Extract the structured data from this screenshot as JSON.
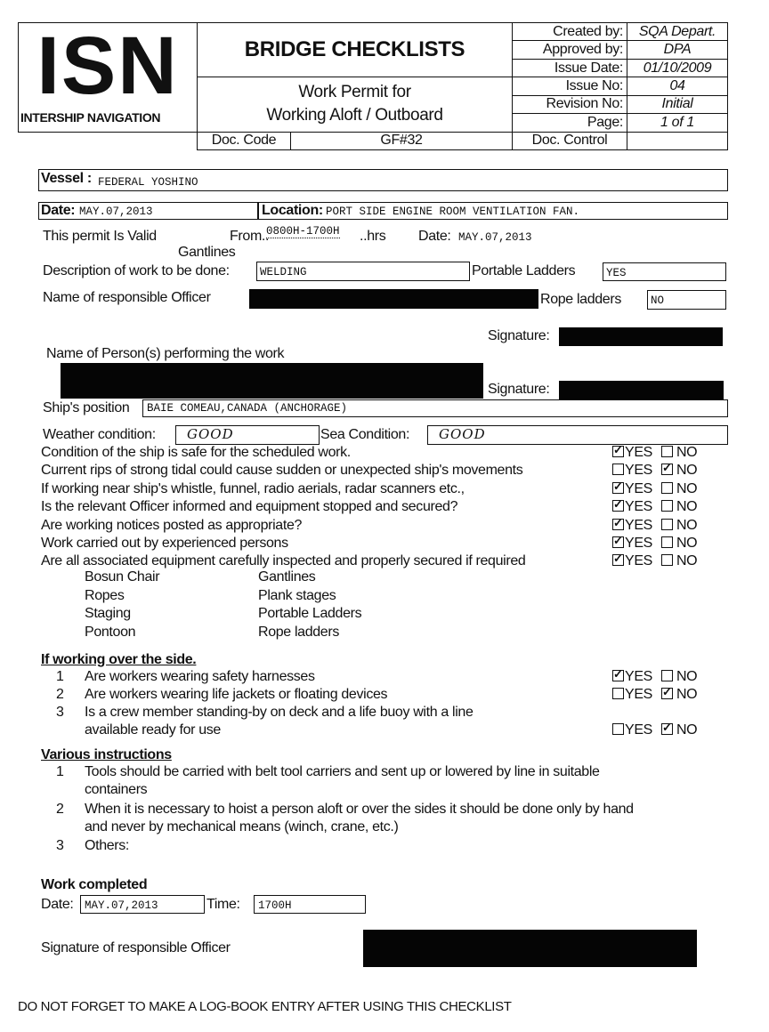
{
  "header": {
    "logo": "ISN",
    "company": "INTERSHIP NAVIGATION",
    "title": "BRIDGE CHECKLISTS",
    "subtitle_line1": "Work Permit for",
    "subtitle_line2": "Working Aloft / Outboard",
    "doc_code_label": "Doc. Code",
    "doc_code": "GF#32",
    "meta": [
      {
        "label": "Created by:",
        "value": "SQA Depart."
      },
      {
        "label": "Approved by:",
        "value": "DPA"
      },
      {
        "label": "Issue Date:",
        "value": "01/10/2009"
      },
      {
        "label": "Issue No:",
        "value": "04"
      },
      {
        "label": "Revision No:",
        "value": "Initial"
      },
      {
        "label": "Page:",
        "value": "1 of 1"
      },
      {
        "label": "Doc. Control",
        "value": ""
      }
    ]
  },
  "form": {
    "vessel_label": "Vessel :",
    "vessel": "FEDERAL YOSHINO",
    "date_label": "Date:",
    "date": "MAY.07,2013",
    "location_label": "Location:",
    "location": "PORT SIDE ENGINE ROOM VENTILATION FAN.",
    "valid_label": "This permit Is Valid",
    "from_label": "From..",
    "from_value": "0800H-1700H",
    "hrs_label": "..hrs",
    "valid_date_label": "Date:",
    "valid_date": "MAY.07,2013",
    "gantlines_label": "Gantlines",
    "description_label": "Description of work to be done:",
    "description": "WELDING",
    "portable_ladders_label": "Portable Ladders",
    "portable_ladders": "YES",
    "officer_label": "Name of responsible Officer",
    "rope_ladders_label": "Rope ladders",
    "rope_ladders": "NO",
    "signature_label": "Signature:",
    "persons_label": "Name of Person(s) performing the work",
    "signature2_label": "Signature:",
    "position_label": "Ship's position",
    "position": "BAIE COMEAU,CANADA (ANCHORAGE)",
    "weather_label": "Weather condition:",
    "weather": "GOOD",
    "sea_label": "Sea Condition:",
    "sea": "GOOD"
  },
  "yes_label": "YES",
  "no_label": "NO",
  "checklist": [
    {
      "text": "Condition of the ship is safe for the scheduled work.",
      "answer": "yes"
    },
    {
      "text": "Current rips of strong tidal could cause sudden or unexpected ship's movements",
      "answer": "no"
    },
    {
      "text": "If working near ship's whistle, funnel, radio aerials, radar scanners etc.,",
      "answer": "yes"
    },
    {
      "text": "Is the relevant Officer informed and equipment stopped and secured?",
      "answer": "yes"
    },
    {
      "text": "Are working notices posted as appropriate?",
      "answer": "yes"
    },
    {
      "text": "Work carried out by experienced persons",
      "answer": "yes"
    },
    {
      "text": "Are all associated equipment carefully inspected and properly secured if required",
      "answer": "yes"
    }
  ],
  "equipment": [
    [
      "Bosun Chair",
      "Gantlines"
    ],
    [
      "Ropes",
      "Plank stages"
    ],
    [
      "Staging",
      "Portable Ladders"
    ],
    [
      "Pontoon",
      "Rope ladders"
    ]
  ],
  "over_side": {
    "title": "If working over the side.",
    "items": [
      {
        "num": "1",
        "text": "Are workers wearing safety harnesses",
        "answer": "yes"
      },
      {
        "num": "2",
        "text": "Are workers wearing life jackets or floating devices",
        "answer": "no"
      },
      {
        "num": "3",
        "text": "Is a crew member standing-by on deck and a life buoy with a line",
        "text2": "available ready for use",
        "answer": "no"
      }
    ]
  },
  "instructions": {
    "title": "Various instructions",
    "items": [
      {
        "num": "1",
        "text": "Tools should be carried with belt tool carriers and sent up or lowered by line in suitable",
        "text2": "containers"
      },
      {
        "num": "2",
        "text": "When it is necessary to hoist a person aloft or over the sides it should be done only by hand",
        "text2": "and never by mechanical means (winch, crane, etc.)"
      },
      {
        "num": "3",
        "text": "Others:",
        "text2": ""
      }
    ]
  },
  "completed": {
    "title": "Work completed",
    "date_label": "Date:",
    "date": "MAY.07,2013",
    "time_label": "Time:",
    "time": "1700H",
    "signature_label": "Signature of responsible Officer"
  },
  "footer": "DO NOT FORGET TO MAKE A LOG-BOOK ENTRY AFTER USING THIS CHECKLIST"
}
